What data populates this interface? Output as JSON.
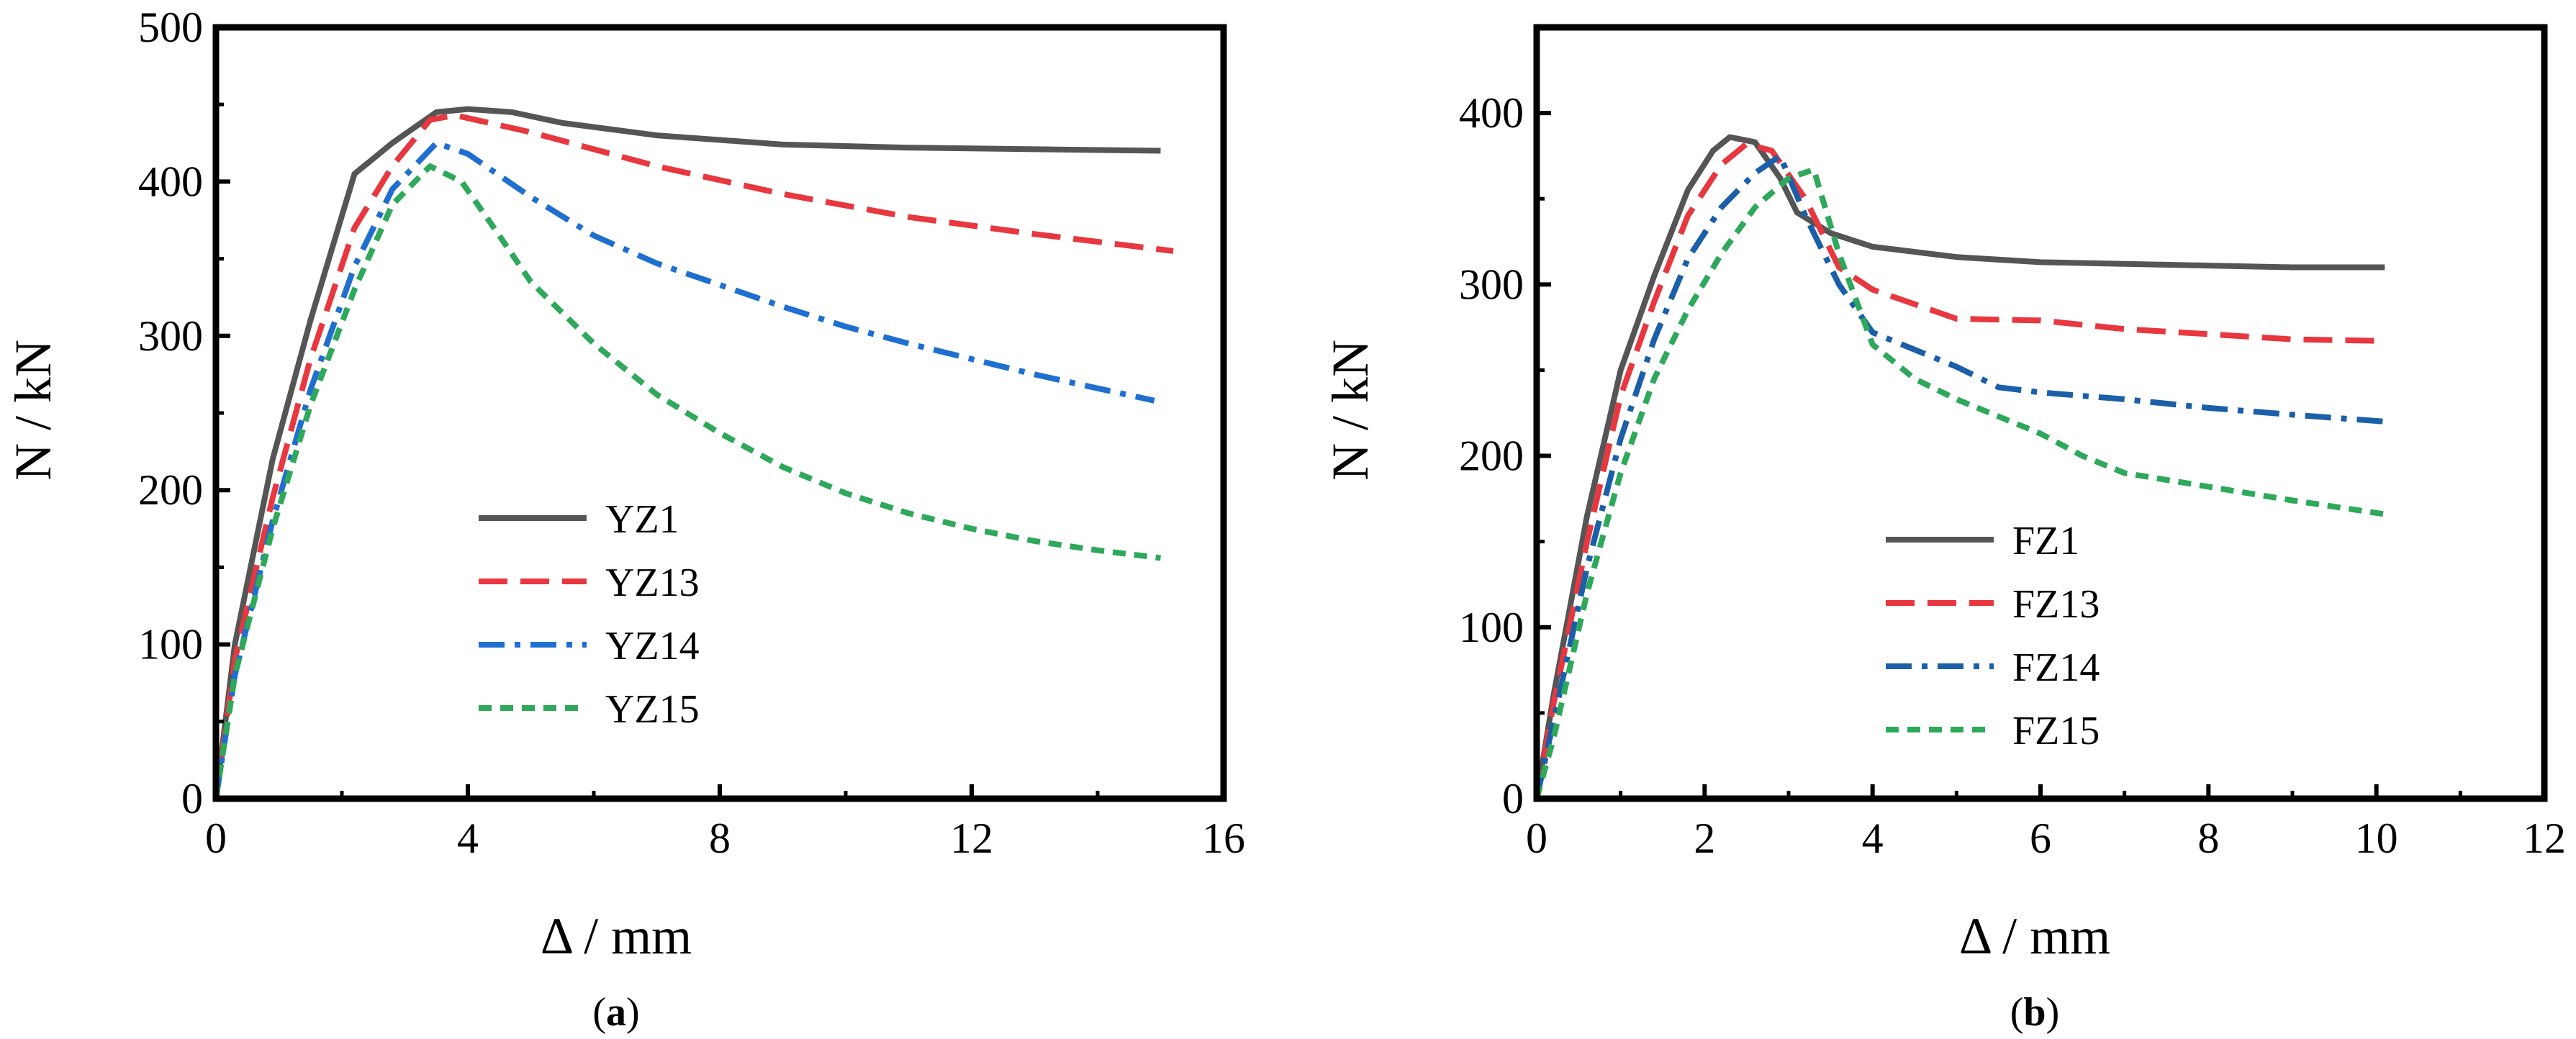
{
  "chart_data": [
    {
      "type": "line",
      "panel": "a",
      "subfigure_label": {
        "open": "(",
        "letter": "a",
        "close": ")"
      },
      "xlabel": "Δ / mm",
      "ylabel": "N / kN",
      "xlim": [
        0,
        16
      ],
      "ylim": [
        0,
        500
      ],
      "xticks": [
        0,
        4,
        8,
        12,
        16
      ],
      "yticks": [
        0,
        100,
        200,
        300,
        400,
        500
      ],
      "grid": false,
      "legend_position": "center",
      "series": [
        {
          "name": "YZ1",
          "color": "#555555",
          "dash": "solid",
          "x": [
            0,
            0.3,
            0.9,
            1.5,
            2.2,
            2.8,
            3.5,
            4.0,
            4.7,
            5.5,
            7.0,
            9.0,
            11.0,
            13.0,
            15.0
          ],
          "y": [
            0,
            100,
            220,
            310,
            405,
            425,
            445,
            447,
            445,
            438,
            430,
            424,
            422,
            421,
            420
          ]
        },
        {
          "name": "YZ13",
          "color": "#e8373e",
          "dash": "dashed",
          "x": [
            0,
            0.3,
            0.9,
            1.5,
            2.2,
            2.8,
            3.4,
            3.8,
            5.0,
            7.0,
            9.0,
            11.0,
            13.0,
            15.2
          ],
          "y": [
            0,
            90,
            195,
            285,
            370,
            410,
            440,
            443,
            432,
            410,
            392,
            377,
            366,
            355
          ]
        },
        {
          "name": "YZ14",
          "color": "#1f6fd0",
          "dash": "dashdot",
          "x": [
            0,
            0.3,
            0.9,
            1.5,
            2.2,
            2.8,
            3.5,
            4.0,
            5.0,
            6.0,
            7.0,
            8.0,
            9.0,
            10.0,
            11.0,
            12.0,
            13.0,
            14.0,
            14.9
          ],
          "y": [
            0,
            80,
            180,
            265,
            345,
            395,
            425,
            418,
            390,
            365,
            347,
            333,
            319,
            306,
            295,
            285,
            275,
            266,
            258
          ]
        },
        {
          "name": "YZ15",
          "color": "#2ea85a",
          "dash": "dotted",
          "x": [
            0,
            0.3,
            0.9,
            1.5,
            2.2,
            2.8,
            3.4,
            3.9,
            4.5,
            5.0,
            6.0,
            7.0,
            8.0,
            9.0,
            10.0,
            11.0,
            12.0,
            13.0,
            14.0,
            15.0
          ],
          "y": [
            0,
            80,
            175,
            255,
            330,
            385,
            410,
            400,
            365,
            335,
            295,
            262,
            237,
            215,
            198,
            185,
            175,
            167,
            161,
            156
          ]
        }
      ]
    },
    {
      "type": "line",
      "panel": "b",
      "subfigure_label": {
        "open": "(",
        "letter": "b",
        "close": ")"
      },
      "xlabel": "Δ / mm",
      "ylabel": "N / kN",
      "xlim": [
        0,
        12
      ],
      "ylim": [
        0,
        450
      ],
      "xticks": [
        0,
        2,
        4,
        6,
        8,
        10,
        12
      ],
      "yticks": [
        0,
        100,
        200,
        300,
        400
      ],
      "grid": false,
      "legend_position": "bottom-center",
      "series": [
        {
          "name": "FZ1",
          "color": "#555555",
          "dash": "solid",
          "x": [
            0,
            0.2,
            0.6,
            1.0,
            1.4,
            1.8,
            2.1,
            2.3,
            2.6,
            2.9,
            3.1,
            3.5,
            4.0,
            5.0,
            6.0,
            7.0,
            8.0,
            9.0,
            10.1
          ],
          "y": [
            0,
            60,
            165,
            250,
            305,
            355,
            378,
            386,
            383,
            362,
            342,
            330,
            322,
            316,
            313,
            312,
            311,
            310,
            310
          ]
        },
        {
          "name": "FZ13",
          "color": "#e8373e",
          "dash": "dashed",
          "x": [
            0,
            0.2,
            0.6,
            1.0,
            1.4,
            1.8,
            2.2,
            2.5,
            2.8,
            3.2,
            3.6,
            4.0,
            5.0,
            6.0,
            7.0,
            8.0,
            9.0,
            10.1
          ],
          "y": [
            0,
            55,
            150,
            235,
            290,
            340,
            370,
            382,
            378,
            350,
            310,
            297,
            280,
            279,
            274,
            271,
            268,
            267
          ]
        },
        {
          "name": "FZ14",
          "color": "#1b5fa8",
          "dash": "dashdot",
          "x": [
            0,
            0.2,
            0.6,
            1.0,
            1.4,
            1.8,
            2.2,
            2.6,
            2.9,
            3.2,
            3.6,
            4.0,
            4.5,
            5.0,
            5.5,
            6.0,
            7.0,
            8.0,
            9.0,
            10.1
          ],
          "y": [
            0,
            45,
            135,
            210,
            268,
            315,
            345,
            365,
            375,
            340,
            300,
            272,
            262,
            252,
            240,
            237,
            233,
            228,
            224,
            220
          ]
        },
        {
          "name": "FZ15",
          "color": "#2ea85a",
          "dash": "dotted",
          "x": [
            0,
            0.2,
            0.6,
            1.0,
            1.4,
            1.8,
            2.2,
            2.6,
            3.0,
            3.3,
            3.6,
            4.0,
            4.5,
            5.0,
            5.5,
            6.0,
            6.5,
            7.0,
            8.0,
            9.0,
            10.1
          ],
          "y": [
            0,
            35,
            120,
            190,
            245,
            285,
            318,
            345,
            362,
            367,
            318,
            265,
            245,
            233,
            223,
            213,
            200,
            190,
            182,
            174,
            166
          ]
        }
      ]
    }
  ]
}
